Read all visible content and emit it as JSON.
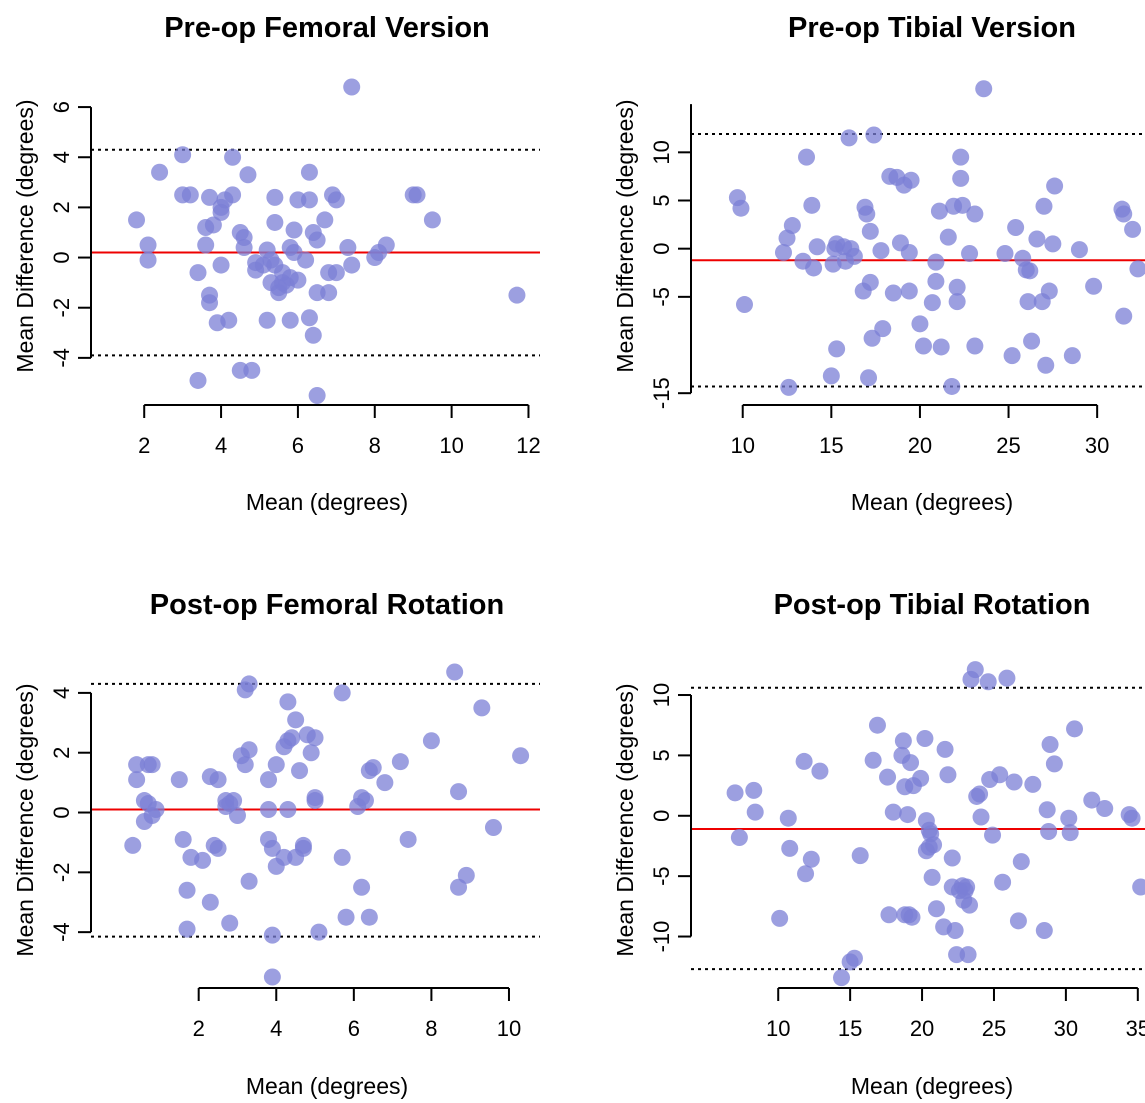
{
  "colors": {
    "points": "#7b7fd6",
    "bias_line": "#ee0000",
    "limit_lines": "#000000",
    "axes": "#000000"
  },
  "chart_data": [
    {
      "type": "scatter",
      "title": "Pre-op Femoral Version",
      "xlabel": "Mean (degrees)",
      "ylabel": "Mean Difference (degrees)",
      "xticks": [
        2,
        4,
        6,
        8,
        10,
        12
      ],
      "yticks": [
        -4,
        -2,
        0,
        2,
        4,
        6
      ],
      "xlim": [
        1.5,
        12.3
      ],
      "ylim": [
        -5.6,
        7.0
      ],
      "bias": 0.2,
      "loa_upper": 4.3,
      "loa_lower": -3.9,
      "points": [
        [
          1.8,
          1.5
        ],
        [
          2.1,
          0.5
        ],
        [
          2.1,
          -0.1
        ],
        [
          2.4,
          3.4
        ],
        [
          3.0,
          4.1
        ],
        [
          3.0,
          2.5
        ],
        [
          3.2,
          2.5
        ],
        [
          3.4,
          -0.6
        ],
        [
          3.4,
          -4.9
        ],
        [
          3.6,
          1.2
        ],
        [
          3.6,
          0.5
        ],
        [
          3.7,
          2.4
        ],
        [
          3.7,
          -1.5
        ],
        [
          3.7,
          -1.8
        ],
        [
          3.8,
          1.3
        ],
        [
          3.9,
          -2.6
        ],
        [
          4.0,
          1.8
        ],
        [
          4.0,
          2.0
        ],
        [
          4.0,
          -0.3
        ],
        [
          4.1,
          2.3
        ],
        [
          4.2,
          -2.5
        ],
        [
          4.3,
          2.5
        ],
        [
          4.3,
          4.0
        ],
        [
          4.5,
          -4.5
        ],
        [
          4.5,
          1.0
        ],
        [
          4.6,
          0.8
        ],
        [
          4.6,
          0.4
        ],
        [
          4.7,
          3.3
        ],
        [
          4.8,
          -4.5
        ],
        [
          4.9,
          -0.2
        ],
        [
          4.9,
          -0.5
        ],
        [
          5.1,
          -0.3
        ],
        [
          5.2,
          -2.5
        ],
        [
          5.2,
          0.3
        ],
        [
          5.3,
          -0.1
        ],
        [
          5.3,
          -1.0
        ],
        [
          5.4,
          2.4
        ],
        [
          5.4,
          1.4
        ],
        [
          5.4,
          -0.3
        ],
        [
          5.5,
          -1.2
        ],
        [
          5.5,
          -1.4
        ],
        [
          5.6,
          -1.0
        ],
        [
          5.6,
          -0.6
        ],
        [
          5.7,
          -1.1
        ],
        [
          5.8,
          -0.8
        ],
        [
          5.8,
          -2.5
        ],
        [
          5.8,
          0.4
        ],
        [
          5.9,
          1.1
        ],
        [
          5.9,
          0.2
        ],
        [
          6.0,
          -0.9
        ],
        [
          6.0,
          2.3
        ],
        [
          6.2,
          -0.1
        ],
        [
          6.3,
          3.4
        ],
        [
          6.3,
          2.3
        ],
        [
          6.3,
          -2.4
        ],
        [
          6.4,
          1.0
        ],
        [
          6.4,
          -3.1
        ],
        [
          6.5,
          0.7
        ],
        [
          6.5,
          -5.5
        ],
        [
          6.5,
          -1.4
        ],
        [
          6.7,
          1.5
        ],
        [
          6.8,
          -0.6
        ],
        [
          6.8,
          -1.4
        ],
        [
          6.9,
          2.5
        ],
        [
          7.0,
          2.3
        ],
        [
          7.0,
          -0.6
        ],
        [
          7.3,
          0.4
        ],
        [
          7.4,
          -0.3
        ],
        [
          7.4,
          6.8
        ],
        [
          8.0,
          0.0
        ],
        [
          8.1,
          0.2
        ],
        [
          8.3,
          0.5
        ],
        [
          9.0,
          2.5
        ],
        [
          9.1,
          2.5
        ],
        [
          9.5,
          1.5
        ],
        [
          11.7,
          -1.5
        ]
      ]
    },
    {
      "type": "scatter",
      "title": "Pre-op Tibial Version",
      "xlabel": "Mean (degrees)",
      "ylabel": "Mean Difference (degrees)",
      "xticks": [
        10,
        15,
        20,
        25,
        30
      ],
      "yticks": [
        -15,
        -5,
        0,
        5,
        10
      ],
      "ylim_ticks_range": [
        -15,
        15
      ],
      "xlim": [
        9.0,
        32.7
      ],
      "ylim": [
        -15.5,
        17.3
      ],
      "bias": -1.2,
      "loa_upper": 11.9,
      "loa_lower": -14.3,
      "points": [
        [
          9.7,
          5.3
        ],
        [
          9.9,
          4.2
        ],
        [
          10.1,
          -5.8
        ],
        [
          12.3,
          -0.4
        ],
        [
          12.5,
          1.1
        ],
        [
          12.6,
          -14.4
        ],
        [
          12.8,
          2.4
        ],
        [
          13.4,
          -1.3
        ],
        [
          13.6,
          9.5
        ],
        [
          13.9,
          4.5
        ],
        [
          14.0,
          -2.0
        ],
        [
          14.2,
          0.2
        ],
        [
          15.0,
          -13.2
        ],
        [
          15.1,
          -1.6
        ],
        [
          15.2,
          0.0
        ],
        [
          15.3,
          0.5
        ],
        [
          15.3,
          -10.4
        ],
        [
          15.7,
          0.2
        ],
        [
          15.8,
          -1.3
        ],
        [
          16.0,
          11.5
        ],
        [
          16.1,
          0.0
        ],
        [
          16.3,
          -0.8
        ],
        [
          16.8,
          -4.4
        ],
        [
          16.9,
          4.3
        ],
        [
          17.0,
          3.6
        ],
        [
          17.1,
          -13.4
        ],
        [
          17.2,
          -3.5
        ],
        [
          17.2,
          1.8
        ],
        [
          17.3,
          -9.3
        ],
        [
          17.4,
          11.8
        ],
        [
          17.8,
          -0.2
        ],
        [
          17.9,
          -8.3
        ],
        [
          18.3,
          7.5
        ],
        [
          18.5,
          -4.6
        ],
        [
          18.7,
          7.4
        ],
        [
          18.9,
          0.6
        ],
        [
          19.1,
          6.6
        ],
        [
          19.4,
          -4.4
        ],
        [
          19.4,
          -0.4
        ],
        [
          19.5,
          7.1
        ],
        [
          20.0,
          -7.8
        ],
        [
          20.2,
          -10.1
        ],
        [
          20.7,
          -5.6
        ],
        [
          20.9,
          -1.4
        ],
        [
          20.9,
          -3.4
        ],
        [
          21.1,
          3.9
        ],
        [
          21.2,
          -10.2
        ],
        [
          21.6,
          1.2
        ],
        [
          21.8,
          -14.3
        ],
        [
          21.9,
          4.4
        ],
        [
          22.1,
          -4.0
        ],
        [
          22.1,
          -5.5
        ],
        [
          22.3,
          9.5
        ],
        [
          22.3,
          7.3
        ],
        [
          22.4,
          4.5
        ],
        [
          22.8,
          -0.5
        ],
        [
          23.1,
          3.6
        ],
        [
          23.1,
          -10.1
        ],
        [
          23.6,
          16.6
        ],
        [
          24.8,
          -0.5
        ],
        [
          25.2,
          -11.1
        ],
        [
          25.4,
          2.2
        ],
        [
          25.8,
          -1.0
        ],
        [
          26.0,
          -2.2
        ],
        [
          26.1,
          -5.5
        ],
        [
          26.2,
          -2.3
        ],
        [
          26.3,
          -9.6
        ],
        [
          26.6,
          1.0
        ],
        [
          26.9,
          -5.5
        ],
        [
          27.0,
          4.4
        ],
        [
          27.1,
          -12.1
        ],
        [
          27.3,
          -4.4
        ],
        [
          27.5,
          0.5
        ],
        [
          27.6,
          6.5
        ],
        [
          28.6,
          -11.1
        ],
        [
          29.0,
          -0.1
        ],
        [
          29.8,
          -3.9
        ],
        [
          31.4,
          4.1
        ],
        [
          31.5,
          3.6
        ],
        [
          31.5,
          -7.0
        ],
        [
          32.0,
          2.0
        ],
        [
          32.3,
          -2.1
        ]
      ]
    },
    {
      "type": "scatter",
      "title": "Post-op Femoral Rotation",
      "xlabel": "Mean (degrees)",
      "ylabel": "Mean Difference (degrees)",
      "xticks": [
        2,
        4,
        6,
        8,
        10
      ],
      "yticks": [
        -4,
        -2,
        0,
        2,
        4
      ],
      "xlim": [
        0.1,
        10.8
      ],
      "ylim": [
        -5.6,
        5.1
      ],
      "bias": 0.1,
      "loa_upper": 4.3,
      "loa_lower": -4.15,
      "points": [
        [
          0.3,
          -1.1
        ],
        [
          0.4,
          1.6
        ],
        [
          0.4,
          1.1
        ],
        [
          0.6,
          0.4
        ],
        [
          0.6,
          -0.3
        ],
        [
          0.7,
          1.6
        ],
        [
          0.7,
          0.3
        ],
        [
          0.8,
          1.6
        ],
        [
          0.8,
          -0.1
        ],
        [
          0.9,
          0.1
        ],
        [
          1.5,
          1.1
        ],
        [
          1.6,
          -0.9
        ],
        [
          1.7,
          -2.6
        ],
        [
          1.7,
          -3.9
        ],
        [
          1.8,
          -1.5
        ],
        [
          2.1,
          -1.6
        ],
        [
          2.3,
          1.2
        ],
        [
          2.3,
          -3.0
        ],
        [
          2.4,
          -1.1
        ],
        [
          2.5,
          -1.2
        ],
        [
          2.5,
          1.1
        ],
        [
          2.7,
          0.2
        ],
        [
          2.7,
          0.4
        ],
        [
          2.8,
          0.3
        ],
        [
          2.8,
          -3.7
        ],
        [
          2.9,
          0.4
        ],
        [
          3.0,
          -0.1
        ],
        [
          3.1,
          1.9
        ],
        [
          3.2,
          1.6
        ],
        [
          3.2,
          4.1
        ],
        [
          3.3,
          4.3
        ],
        [
          3.3,
          2.1
        ],
        [
          3.3,
          -2.3
        ],
        [
          3.8,
          1.1
        ],
        [
          3.8,
          0.1
        ],
        [
          3.8,
          -0.9
        ],
        [
          3.9,
          -1.2
        ],
        [
          3.9,
          -5.5
        ],
        [
          3.9,
          -4.1
        ],
        [
          4.0,
          1.6
        ],
        [
          4.0,
          -1.8
        ],
        [
          4.2,
          2.2
        ],
        [
          4.2,
          -1.5
        ],
        [
          4.3,
          0.1
        ],
        [
          4.3,
          2.4
        ],
        [
          4.3,
          3.7
        ],
        [
          4.4,
          2.5
        ],
        [
          4.5,
          3.1
        ],
        [
          4.5,
          -1.5
        ],
        [
          4.6,
          1.4
        ],
        [
          4.7,
          -1.1
        ],
        [
          4.7,
          -1.2
        ],
        [
          4.8,
          2.6
        ],
        [
          4.9,
          2.0
        ],
        [
          5.0,
          0.5
        ],
        [
          5.0,
          0.4
        ],
        [
          5.0,
          2.5
        ],
        [
          5.1,
          -4.0
        ],
        [
          5.7,
          4.0
        ],
        [
          5.7,
          -1.5
        ],
        [
          5.8,
          -3.5
        ],
        [
          6.1,
          0.2
        ],
        [
          6.2,
          0.5
        ],
        [
          6.2,
          -2.5
        ],
        [
          6.3,
          0.4
        ],
        [
          6.4,
          -3.5
        ],
        [
          6.4,
          1.4
        ],
        [
          6.5,
          1.5
        ],
        [
          6.8,
          1.0
        ],
        [
          7.2,
          1.7
        ],
        [
          7.4,
          -0.9
        ],
        [
          8.0,
          2.4
        ],
        [
          8.6,
          4.7
        ],
        [
          8.7,
          0.7
        ],
        [
          8.7,
          -2.5
        ],
        [
          8.9,
          -2.1
        ],
        [
          9.3,
          3.5
        ],
        [
          9.6,
          -0.5
        ],
        [
          10.3,
          1.9
        ]
      ]
    },
    {
      "type": "scatter",
      "title": "Post-op Tibial Rotation",
      "xlabel": "Mean (degrees)",
      "ylabel": "Mean Difference (degrees)",
      "xticks": [
        10,
        15,
        20,
        25,
        30,
        35
      ],
      "yticks": [
        -10,
        -5,
        0,
        5,
        10
      ],
      "xlim": [
        6.3,
        35.5
      ],
      "ylim": [
        -13.6,
        12.9
      ],
      "bias": -1.1,
      "loa_upper": 10.6,
      "loa_lower": -12.7,
      "points": [
        [
          7.0,
          1.9
        ],
        [
          7.3,
          -1.8
        ],
        [
          8.3,
          2.1
        ],
        [
          8.4,
          0.3
        ],
        [
          10.1,
          -8.5
        ],
        [
          10.7,
          -0.2
        ],
        [
          10.8,
          -2.7
        ],
        [
          11.8,
          4.5
        ],
        [
          11.9,
          -4.8
        ],
        [
          12.3,
          -3.6
        ],
        [
          12.9,
          3.7
        ],
        [
          14.4,
          -13.4
        ],
        [
          15.0,
          -12.1
        ],
        [
          15.3,
          -11.8
        ],
        [
          15.7,
          -3.3
        ],
        [
          16.6,
          4.6
        ],
        [
          16.9,
          7.5
        ],
        [
          17.6,
          3.2
        ],
        [
          17.7,
          -8.2
        ],
        [
          18.0,
          0.3
        ],
        [
          18.6,
          5.0
        ],
        [
          18.7,
          6.2
        ],
        [
          18.8,
          -8.2
        ],
        [
          18.8,
          2.4
        ],
        [
          19.0,
          0.1
        ],
        [
          19.1,
          -8.2
        ],
        [
          19.2,
          4.4
        ],
        [
          19.3,
          -8.4
        ],
        [
          19.4,
          2.5
        ],
        [
          19.9,
          3.1
        ],
        [
          20.2,
          6.4
        ],
        [
          20.3,
          -0.4
        ],
        [
          20.3,
          -2.9
        ],
        [
          20.5,
          -1.2
        ],
        [
          20.5,
          -2.6
        ],
        [
          20.6,
          -1.5
        ],
        [
          20.7,
          -5.1
        ],
        [
          20.8,
          -2.4
        ],
        [
          21.0,
          -7.7
        ],
        [
          21.5,
          -9.2
        ],
        [
          21.6,
          5.5
        ],
        [
          21.8,
          3.4
        ],
        [
          22.1,
          -3.5
        ],
        [
          22.1,
          -5.9
        ],
        [
          22.3,
          -9.5
        ],
        [
          22.4,
          -11.5
        ],
        [
          22.6,
          -6.2
        ],
        [
          22.8,
          -5.8
        ],
        [
          22.9,
          -7.0
        ],
        [
          23.0,
          -6.2
        ],
        [
          23.1,
          -5.9
        ],
        [
          23.2,
          -11.5
        ],
        [
          23.3,
          -7.4
        ],
        [
          23.4,
          11.3
        ],
        [
          23.7,
          12.1
        ],
        [
          23.8,
          1.6
        ],
        [
          24.0,
          1.8
        ],
        [
          24.1,
          -0.1
        ],
        [
          24.6,
          11.1
        ],
        [
          24.7,
          3.0
        ],
        [
          24.9,
          -1.6
        ],
        [
          25.4,
          3.4
        ],
        [
          25.6,
          -5.5
        ],
        [
          25.9,
          11.4
        ],
        [
          26.4,
          2.8
        ],
        [
          26.7,
          -8.7
        ],
        [
          26.9,
          -3.8
        ],
        [
          27.7,
          2.6
        ],
        [
          28.5,
          -9.5
        ],
        [
          28.7,
          0.5
        ],
        [
          28.8,
          -1.3
        ],
        [
          28.9,
          5.9
        ],
        [
          29.2,
          4.3
        ],
        [
          30.2,
          -0.2
        ],
        [
          30.3,
          -1.4
        ],
        [
          30.6,
          7.2
        ],
        [
          31.8,
          1.3
        ],
        [
          32.7,
          0.6
        ],
        [
          34.4,
          0.1
        ],
        [
          34.6,
          -0.2
        ],
        [
          35.2,
          -5.9
        ]
      ]
    }
  ]
}
